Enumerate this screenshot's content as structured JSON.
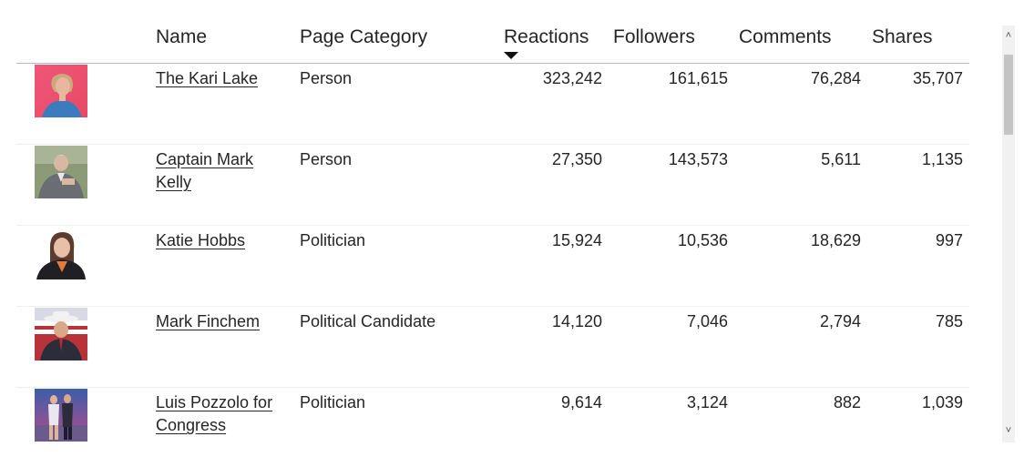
{
  "table": {
    "columns": {
      "name": "Name",
      "category": "Page Category",
      "reactions": "Reactions",
      "followers": "Followers",
      "comments": "Comments",
      "shares": "Shares"
    },
    "sort": {
      "column": "Reactions",
      "direction": "descending"
    },
    "rows": [
      {
        "name": "The Kari Lake",
        "category": "Person",
        "reactions": "323,242",
        "followers": "161,615",
        "comments": "76,284",
        "shares": "35,707",
        "avatar_icon": "profile-photo-woman-pink-background"
      },
      {
        "name": "Captain Mark Kelly",
        "category": "Person",
        "reactions": "27,350",
        "followers": "143,573",
        "comments": "5,611",
        "shares": "1,135",
        "avatar_icon": "profile-photo-man-grey-suit"
      },
      {
        "name": "Katie Hobbs",
        "category": "Politician",
        "reactions": "15,924",
        "followers": "10,536",
        "comments": "18,629",
        "shares": "997",
        "avatar_icon": "profile-photo-woman-dark-jacket"
      },
      {
        "name": "Mark Finchem",
        "category": "Political Candidate",
        "reactions": "14,120",
        "followers": "7,046",
        "comments": "2,794",
        "shares": "785",
        "avatar_icon": "profile-photo-man-cowboy-hat"
      },
      {
        "name": "Luis Pozzolo for Congress",
        "category": "Politician",
        "reactions": "9,614",
        "followers": "3,124",
        "comments": "882",
        "shares": "1,039",
        "avatar_icon": "profile-photo-couple-stage"
      }
    ]
  },
  "scrollbar": {
    "up_glyph": "˄",
    "down_glyph": "˅"
  }
}
